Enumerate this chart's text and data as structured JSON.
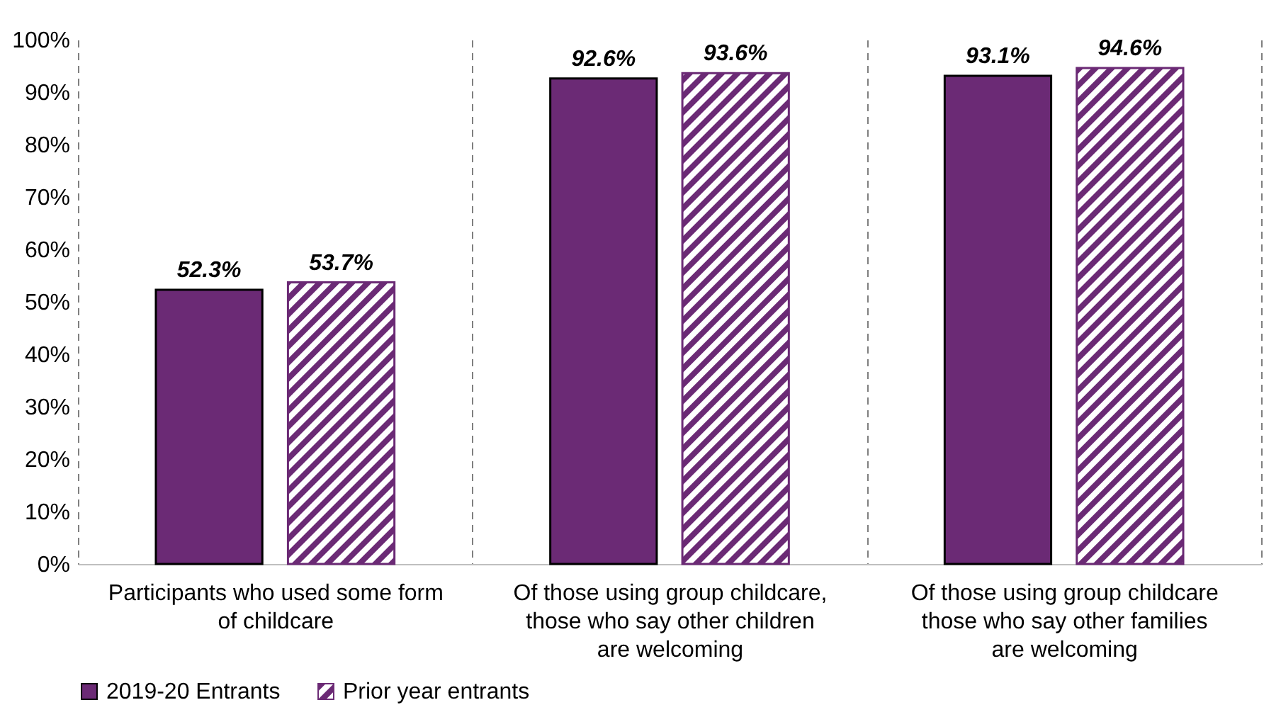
{
  "chart_data": {
    "type": "bar",
    "categories": [
      "Participants who used some form of childcare",
      "Of those using group childcare, those who say other children are welcoming",
      "Of those using group childcare those who say other families are welcoming"
    ],
    "series": [
      {
        "name": "2019-20 Entrants",
        "color": "#6b2a75",
        "values": [
          52.3,
          92.6,
          93.1
        ]
      },
      {
        "name": "Prior year entrants",
        "color": "#6b2a75",
        "values": [
          53.7,
          93.6,
          94.6
        ]
      }
    ],
    "value_labels": [
      [
        "52.3%",
        "92.6%",
        "93.1%"
      ],
      [
        "53.7%",
        "93.6%",
        "94.6%"
      ]
    ],
    "ylim": [
      0,
      100
    ],
    "yticks": [
      {
        "value": 0,
        "label": "0%"
      },
      {
        "value": 10,
        "label": "10%"
      },
      {
        "value": 20,
        "label": "20%"
      },
      {
        "value": 30,
        "label": "30%"
      },
      {
        "value": 40,
        "label": "40%"
      },
      {
        "value": 50,
        "label": "50%"
      },
      {
        "value": 60,
        "label": "60%"
      },
      {
        "value": 70,
        "label": "70%"
      },
      {
        "value": 80,
        "label": "80%"
      },
      {
        "value": 90,
        "label": "90%"
      },
      {
        "value": 100,
        "label": "100%"
      }
    ],
    "grid": "x",
    "legend": "bottom"
  }
}
